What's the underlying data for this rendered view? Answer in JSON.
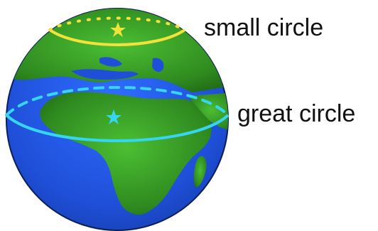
{
  "labels": {
    "small_circle": "small circle",
    "great_circle": "great circle"
  },
  "colors": {
    "ocean": "#1f4fd8",
    "ocean_highlight": "#2f6cff",
    "land": "#2f8a1f",
    "land_highlight": "#3fae2d",
    "globe_outline": "#0a1f55",
    "small_circle": "#f3e23a",
    "great_circle": "#36d6f2",
    "star_marker": "#f3e23a",
    "center_marker": "#36d6f2",
    "background": "#ffffff",
    "text": "#111111"
  },
  "icons": {
    "small_circle_marker": "star-icon",
    "great_circle_marker": "star-icon"
  }
}
